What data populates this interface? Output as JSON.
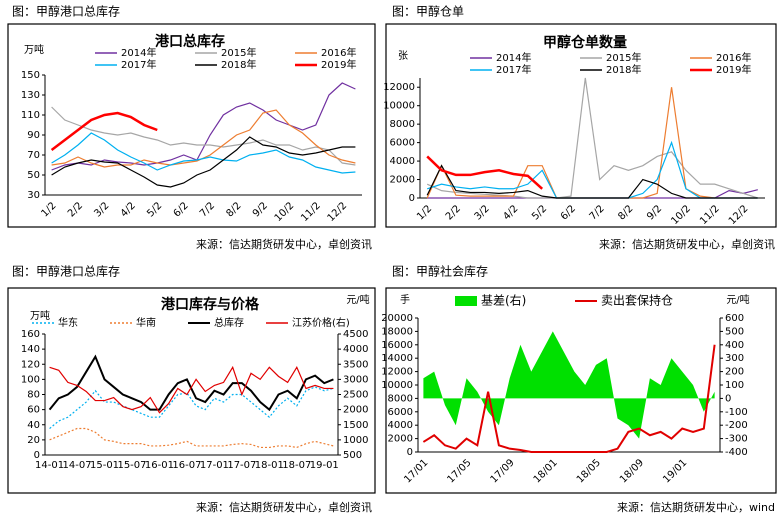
{
  "chart_data": [
    {
      "type": "line",
      "heading": "图：甲醇港口总库存",
      "title": "港口总库存",
      "y_unit": "万吨",
      "source": "来源：信达期货研发中心，卓创资讯",
      "categories": [
        "1/2",
        null,
        "2/2",
        null,
        "3/2",
        null,
        "4/2",
        null,
        "5/2",
        null,
        "6/2",
        null,
        "7/2",
        null,
        "8/2",
        null,
        "9/2",
        null,
        "10/2",
        null,
        "11/2",
        null,
        "12/2",
        null
      ],
      "ylim": [
        30,
        150
      ],
      "yticks": [
        30,
        50,
        70,
        90,
        110,
        130,
        150
      ],
      "series": [
        {
          "name": "2014年",
          "color": "#7030a0",
          "values": [
            55,
            60,
            62,
            60,
            65,
            63,
            62,
            60,
            62,
            65,
            70,
            65,
            90,
            110,
            118,
            122,
            115,
            105,
            100,
            95,
            100,
            130,
            142,
            136
          ]
        },
        {
          "name": "2015年",
          "color": "#a6a6a6",
          "values": [
            118,
            105,
            100,
            95,
            92,
            90,
            92,
            88,
            85,
            80,
            82,
            80,
            80,
            78,
            80,
            82,
            85,
            80,
            80,
            75,
            78,
            75,
            62,
            60
          ]
        },
        {
          "name": "2016年",
          "color": "#ed7d31",
          "values": [
            60,
            62,
            68,
            62,
            58,
            60,
            60,
            65,
            62,
            60,
            62,
            64,
            70,
            80,
            90,
            95,
            112,
            115,
            100,
            92,
            80,
            70,
            65,
            62
          ]
        },
        {
          "name": "2017年",
          "color": "#00b0f0",
          "values": [
            62,
            70,
            80,
            92,
            85,
            75,
            68,
            62,
            55,
            60,
            64,
            65,
            68,
            65,
            64,
            70,
            72,
            75,
            68,
            65,
            58,
            55,
            52,
            53
          ]
        },
        {
          "name": "2018年",
          "color": "#000000",
          "values": [
            50,
            58,
            62,
            65,
            63,
            62,
            55,
            48,
            40,
            38,
            42,
            50,
            55,
            65,
            75,
            88,
            80,
            78,
            72,
            70,
            72,
            75,
            78,
            78
          ]
        },
        {
          "name": "2019年",
          "color": "#ff0000",
          "line_width": 2.5,
          "values": [
            75,
            85,
            95,
            105,
            110,
            112,
            108,
            100,
            95,
            null,
            null,
            null,
            null,
            null,
            null,
            null,
            null,
            null,
            null,
            null,
            null,
            null,
            null,
            null
          ]
        }
      ]
    },
    {
      "type": "line",
      "heading": "图：甲醇仓单",
      "title": "甲醇仓单数量",
      "y_unit": "张",
      "source": "来源：信达期货研发中心，卓创资讯",
      "categories": [
        "1/2",
        null,
        "2/2",
        null,
        "3/2",
        null,
        "4/2",
        null,
        "5/2",
        null,
        "6/2",
        null,
        "7/2",
        null,
        "8/2",
        null,
        "9/2",
        null,
        "10/2",
        null,
        "11/2",
        null,
        "12/2",
        null
      ],
      "ylim": [
        0,
        13000
      ],
      "yticks": [
        0,
        2000,
        4000,
        6000,
        8000,
        10000,
        12000
      ],
      "series": [
        {
          "name": "2014年",
          "color": "#7030a0",
          "values": [
            0,
            0,
            0,
            0,
            0,
            0,
            0,
            0,
            0,
            0,
            0,
            0,
            0,
            0,
            0,
            0,
            0,
            0,
            0,
            0,
            0,
            800,
            500,
            900
          ]
        },
        {
          "name": "2015年",
          "color": "#a6a6a6",
          "values": [
            1500,
            800,
            600,
            500,
            400,
            300,
            200,
            0,
            0,
            0,
            200,
            13000,
            2000,
            3500,
            3000,
            3500,
            4500,
            5000,
            3000,
            1500,
            1500,
            1000,
            500,
            0
          ]
        },
        {
          "name": "2016年",
          "color": "#ed7d31",
          "values": [
            0,
            3500,
            300,
            200,
            200,
            200,
            200,
            3500,
            3500,
            0,
            0,
            0,
            0,
            0,
            0,
            0,
            500,
            12000,
            1000,
            200,
            0,
            0,
            0,
            0
          ]
        },
        {
          "name": "2017年",
          "color": "#00b0f0",
          "values": [
            1000,
            1500,
            1200,
            1000,
            1200,
            1000,
            1000,
            1500,
            3000,
            0,
            0,
            0,
            0,
            0,
            0,
            500,
            2000,
            6000,
            1000,
            0,
            0,
            0,
            0,
            0
          ]
        },
        {
          "name": "2018年",
          "color": "#000000",
          "values": [
            300,
            3500,
            800,
            600,
            600,
            500,
            600,
            800,
            200,
            0,
            0,
            0,
            0,
            0,
            0,
            2000,
            1500,
            500,
            0,
            0,
            0,
            0,
            0,
            0
          ]
        },
        {
          "name": "2019年",
          "color": "#ff0000",
          "line_width": 2.5,
          "values": [
            4500,
            3000,
            2500,
            2500,
            2800,
            3000,
            2600,
            2400,
            1000,
            null,
            null,
            null,
            null,
            null,
            null,
            null,
            null,
            null,
            null,
            null,
            null,
            null,
            null,
            null
          ]
        }
      ]
    },
    {
      "type": "line",
      "heading": "图：甲醇港口总库存",
      "title": "港口库存与价格",
      "y_unit": "万吨",
      "y2_unit": "元/吨",
      "source": "来源：信达期货研发中心，卓创资讯",
      "categories": [
        "14-01",
        null,
        null,
        "14-07",
        null,
        null,
        "15-01",
        null,
        null,
        "15-07",
        null,
        null,
        "16-01",
        null,
        null,
        "16-07",
        null,
        null,
        "17-01",
        null,
        null,
        "17-07",
        null,
        null,
        "18-01",
        null,
        null,
        "18-07",
        null,
        null,
        "19-01",
        null
      ],
      "ylim": [
        0,
        160
      ],
      "yticks": [
        0,
        20,
        40,
        60,
        80,
        100,
        120,
        140,
        160
      ],
      "y2lim": [
        500,
        4500
      ],
      "y2ticks": [
        500,
        1000,
        1500,
        2000,
        2500,
        3000,
        3500,
        4000,
        4500
      ],
      "series": [
        {
          "name": "华东",
          "color": "#00b0f0",
          "dash": true,
          "values": [
            35,
            45,
            50,
            60,
            70,
            85,
            70,
            70,
            65,
            60,
            55,
            50,
            50,
            65,
            80,
            82,
            65,
            60,
            75,
            70,
            80,
            80,
            70,
            60,
            50,
            65,
            75,
            65,
            85,
            90,
            85,
            88
          ]
        },
        {
          "name": "华南",
          "color": "#ed7d31",
          "dash": true,
          "values": [
            20,
            25,
            30,
            35,
            35,
            30,
            20,
            18,
            15,
            15,
            15,
            12,
            12,
            13,
            15,
            18,
            12,
            12,
            12,
            12,
            14,
            15,
            14,
            10,
            10,
            12,
            12,
            10,
            15,
            18,
            15,
            12
          ]
        },
        {
          "name": "总库存",
          "color": "#000000",
          "line_width": 2,
          "values": [
            60,
            75,
            80,
            90,
            110,
            130,
            100,
            90,
            80,
            75,
            70,
            60,
            60,
            80,
            95,
            100,
            75,
            70,
            85,
            80,
            95,
            95,
            85,
            70,
            60,
            80,
            85,
            75,
            100,
            105,
            95,
            100
          ]
        },
        {
          "name": "江苏价格(右)",
          "color": "#e00000",
          "axis": "y2",
          "values": [
            3400,
            3300,
            2900,
            2800,
            2600,
            2300,
            2300,
            2400,
            2100,
            2000,
            2100,
            2400,
            1900,
            2200,
            2700,
            2500,
            3000,
            2600,
            2800,
            2900,
            3400,
            2500,
            3200,
            3000,
            3400,
            3100,
            2900,
            3400,
            2700,
            2800,
            2700,
            2700
          ]
        }
      ]
    },
    {
      "type": "line",
      "heading": "图：甲醇社会库存",
      "y_unit": "手",
      "y2_unit": "元/吨",
      "source": "来源：信达期货研发中心，wind",
      "categories": [
        "17/01",
        null,
        null,
        null,
        "17/05",
        null,
        null,
        null,
        "17/09",
        null,
        null,
        null,
        "18/01",
        null,
        null,
        null,
        "18/05",
        null,
        null,
        null,
        "18/09",
        null,
        null,
        null,
        "19/01",
        null,
        null,
        null
      ],
      "ylim": [
        0,
        20000
      ],
      "yticks": [
        0,
        2000,
        4000,
        6000,
        8000,
        10000,
        12000,
        14000,
        16000,
        18000,
        20000
      ],
      "y2lim": [
        -400,
        600
      ],
      "y2ticks": [
        -400,
        -300,
        -200,
        -100,
        0,
        100,
        200,
        300,
        400,
        500,
        600
      ],
      "series": [
        {
          "name": "基差(右)",
          "color": "#00e000",
          "axis": "y2",
          "area": true,
          "values": [
            150,
            200,
            -50,
            -200,
            150,
            50,
            -100,
            -200,
            150,
            400,
            200,
            350,
            500,
            350,
            200,
            100,
            250,
            300,
            -150,
            -200,
            -300,
            150,
            100,
            300,
            200,
            100,
            -100,
            50
          ]
        },
        {
          "name": "卖出套保持仓",
          "color": "#e00000",
          "line_width": 2,
          "values": [
            1500,
            2500,
            1000,
            500,
            2000,
            1000,
            9000,
            1000,
            500,
            300,
            0,
            0,
            0,
            0,
            0,
            0,
            0,
            0,
            500,
            3000,
            3500,
            2500,
            3000,
            2000,
            3500,
            3000,
            3500,
            16000
          ]
        }
      ]
    }
  ]
}
